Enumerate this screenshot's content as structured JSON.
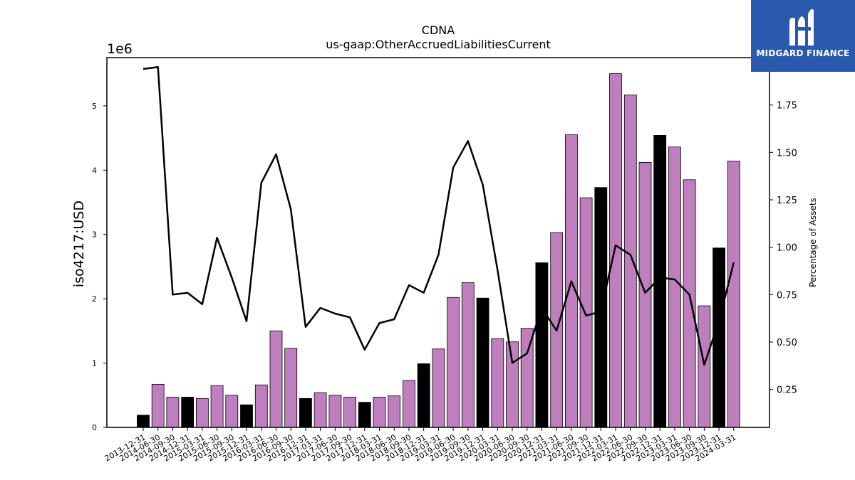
{
  "chart_data": {
    "type": "bar",
    "title": "CDNA",
    "subtitle": "us-gaap:OtherAccruedLiabilitiesCurrent",
    "ylabel": "iso4217:USD",
    "y2label": "Percentage of Assets",
    "y_multiplier_label": "1e6",
    "ylim": [
      0,
      5.75
    ],
    "y2lim": [
      0.05,
      2.0
    ],
    "y_ticks": [
      "0",
      "1",
      "2",
      "3",
      "4",
      "5"
    ],
    "y2_ticks": [
      "0.25",
      "0.50",
      "0.75",
      "1.00",
      "1.25",
      "1.50",
      "1.75"
    ],
    "categories": [
      "2013-12-31",
      "2014-06-30",
      "2014-09-30",
      "2014-12-31",
      "2015-03-31",
      "2015-06-30",
      "2015-09-30",
      "2015-12-31",
      "2016-03-31",
      "2016-06-30",
      "2016-09-30",
      "2016-12-31",
      "2017-03-31",
      "2017-06-30",
      "2017-09-30",
      "2017-12-31",
      "2018-03-31",
      "2018-06-30",
      "2018-09-30",
      "2018-12-31",
      "2019-03-31",
      "2019-06-30",
      "2019-09-30",
      "2019-12-31",
      "2020-03-31",
      "2020-06-30",
      "2020-09-30",
      "2020-12-31",
      "2021-03-31",
      "2021-06-30",
      "2021-09-30",
      "2021-12-31",
      "2022-03-31",
      "2022-06-30",
      "2022-09-30",
      "2022-12-31",
      "2023-03-31",
      "2023-06-30",
      "2023-09-30",
      "2023-12-31",
      "2024-03-31"
    ],
    "series": [
      {
        "axis": "left",
        "kind": "bar",
        "values": [
          0.19,
          0.67,
          0.47,
          0.47,
          0.45,
          0.65,
          0.5,
          0.35,
          0.66,
          1.5,
          1.23,
          0.45,
          0.54,
          0.5,
          0.47,
          0.39,
          0.47,
          0.49,
          0.73,
          0.99,
          1.22,
          2.02,
          2.25,
          2.01,
          1.38,
          1.33,
          1.54,
          2.56,
          3.03,
          4.55,
          3.57,
          3.73,
          5.5,
          5.17,
          4.12,
          4.54,
          4.36,
          3.85,
          1.89,
          2.79,
          4.14
        ],
        "annual": [
          true,
          false,
          false,
          true,
          false,
          false,
          false,
          true,
          false,
          false,
          false,
          true,
          false,
          false,
          false,
          true,
          false,
          false,
          false,
          true,
          false,
          false,
          false,
          true,
          false,
          false,
          false,
          true,
          false,
          false,
          false,
          true,
          false,
          false,
          false,
          true,
          false,
          false,
          false,
          true,
          false
        ]
      },
      {
        "axis": "right",
        "kind": "line",
        "values": [
          1.94,
          1.95,
          0.75,
          0.76,
          0.7,
          1.05,
          0.84,
          0.61,
          1.34,
          1.49,
          1.2,
          0.58,
          0.68,
          0.65,
          0.63,
          0.46,
          0.6,
          0.62,
          0.8,
          0.76,
          0.96,
          1.42,
          1.56,
          1.33,
          0.88,
          0.39,
          0.44,
          0.68,
          0.56,
          0.82,
          0.64,
          0.66,
          1.01,
          0.96,
          0.76,
          0.84,
          0.83,
          0.75,
          0.38,
          0.61,
          0.92
        ]
      }
    ],
    "colors": {
      "bar_annual": "#000000",
      "bar_quarterly": "#bf7fbf",
      "line": "#000000"
    },
    "grid": false
  },
  "logo": {
    "text": "MIDGARD FINANCE",
    "icon": "midgard-logo-icon"
  }
}
